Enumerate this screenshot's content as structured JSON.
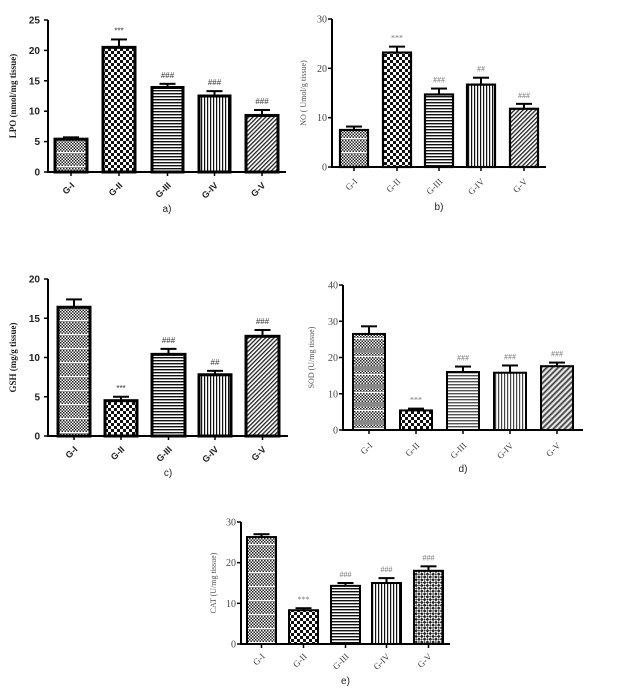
{
  "chart_data": [
    {
      "id": "a",
      "type": "bar",
      "panel_label": "a)",
      "title": "",
      "xlabel": "",
      "ylabel": "LPO (nmol/mg tissue)",
      "categories": [
        "G-I",
        "G-II",
        "G-III",
        "G-IV",
        "G-V"
      ],
      "values": [
        5.4,
        20.5,
        13.9,
        12.5,
        9.3
      ],
      "errors": [
        0.3,
        1.3,
        0.6,
        0.8,
        0.9
      ],
      "significance": [
        "",
        "***",
        "###",
        "###",
        "###"
      ],
      "yticks": [
        0,
        5,
        10,
        15,
        20,
        25
      ],
      "ylim": [
        0,
        25
      ],
      "patterns": [
        "fine-check",
        "coarse-check",
        "horizontal",
        "vertical",
        "diagonal"
      ]
    },
    {
      "id": "b",
      "type": "bar",
      "panel_label": "b)",
      "title": "",
      "xlabel": "",
      "ylabel": "NO ( Umol/g tissue)",
      "categories": [
        "G-I",
        "G-II",
        "G-III",
        "G-IV",
        "G-V"
      ],
      "values": [
        7.5,
        23.2,
        14.7,
        16.7,
        11.8
      ],
      "errors": [
        0.7,
        1.2,
        1.2,
        1.4,
        1.0
      ],
      "significance": [
        "",
        "***",
        "###",
        "##",
        "###"
      ],
      "yticks": [
        0,
        10,
        20,
        30
      ],
      "ylim": [
        0,
        30
      ],
      "patterns": [
        "fine-check",
        "coarse-check",
        "horizontal",
        "vertical",
        "diagonal"
      ]
    },
    {
      "id": "c",
      "type": "bar",
      "panel_label": "c)",
      "title": "",
      "xlabel": "",
      "ylabel": "GSH (mg/g tissue)",
      "categories": [
        "G-I",
        "G-II",
        "G-III",
        "G-IV",
        "G-V"
      ],
      "values": [
        16.4,
        4.5,
        10.4,
        7.8,
        12.7
      ],
      "errors": [
        1.0,
        0.5,
        0.7,
        0.5,
        0.8
      ],
      "significance": [
        "",
        "***",
        "###",
        "##",
        "###"
      ],
      "yticks": [
        0,
        5,
        10,
        15,
        20
      ],
      "ylim": [
        0,
        20
      ],
      "patterns": [
        "fine-check",
        "coarse-check",
        "horizontal",
        "vertical",
        "diagonal"
      ]
    },
    {
      "id": "d",
      "type": "bar",
      "panel_label": "d)",
      "title": "",
      "xlabel": "",
      "ylabel": "SOD (U/mg tissue)",
      "categories": [
        "G-I",
        "G-II",
        "G-III",
        "G-IV",
        "G-V"
      ],
      "values": [
        26.5,
        5.4,
        16.0,
        15.8,
        17.6
      ],
      "errors": [
        2.1,
        0.5,
        1.5,
        2.0,
        1.0
      ],
      "significance": [
        "",
        "***",
        "###",
        "###",
        "###"
      ],
      "yticks": [
        0,
        10,
        20,
        30,
        40
      ],
      "ylim": [
        0,
        40
      ],
      "patterns": [
        "fine-check",
        "coarse-check",
        "horizontal",
        "vertical",
        "diagonal"
      ]
    },
    {
      "id": "e",
      "type": "bar",
      "panel_label": "e)",
      "title": "",
      "xlabel": "",
      "ylabel": "CAT (U/mg tissue)",
      "categories": [
        "G-I",
        "G-II",
        "G-III",
        "G-IV",
        "G-V"
      ],
      "values": [
        26.3,
        8.3,
        14.3,
        15.0,
        18.0
      ],
      "errors": [
        0.7,
        0.5,
        0.7,
        1.2,
        1.1
      ],
      "significance": [
        "",
        "***",
        "###",
        "###",
        "###"
      ],
      "yticks": [
        0,
        10,
        20,
        30
      ],
      "ylim": [
        0,
        30
      ],
      "patterns": [
        "fine-check",
        "coarse-check",
        "horizontal",
        "vertical",
        "diagonal"
      ]
    }
  ]
}
